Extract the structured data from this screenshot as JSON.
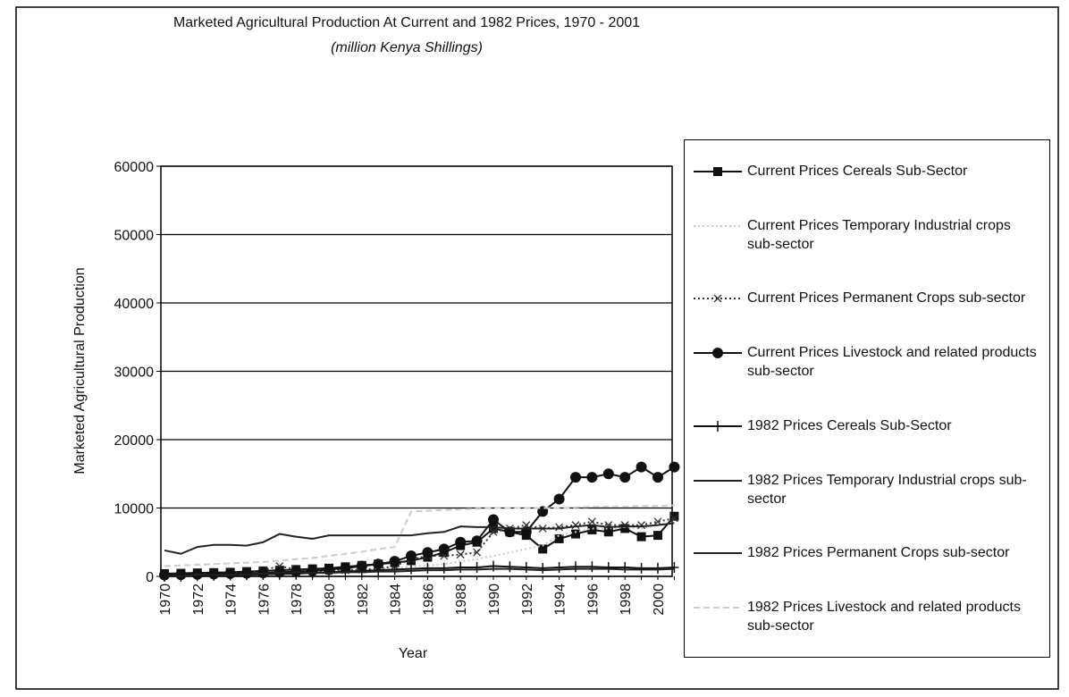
{
  "chart_data": {
    "type": "line",
    "title": "Marketed Agricultural Production At Current and 1982 Prices, 1970 - 2001",
    "subtitle": "(million Kenya Shillings)",
    "y_label": "Marketed Agricultural Production",
    "x_label": "Year",
    "categories": [
      "1970",
      null,
      "1972",
      null,
      "1974",
      null,
      "1976",
      null,
      "1978",
      null,
      "1980",
      null,
      "1982",
      null,
      "1984",
      null,
      "1986",
      null,
      "1988",
      null,
      "1990",
      null,
      "1992",
      null,
      "1994",
      null,
      "1996",
      null,
      "1998",
      null,
      "2000",
      null
    ],
    "ylim": [
      0,
      60000
    ],
    "yticks": [
      0,
      10000,
      20000,
      30000,
      40000,
      50000,
      60000
    ],
    "grid": true,
    "series": [
      {
        "name": "Current Prices Cereals Sub-Sector",
        "color": "#111111",
        "marker": "square",
        "dash": "solid",
        "values": [
          400,
          450,
          500,
          550,
          600,
          700,
          800,
          900,
          1000,
          1100,
          1200,
          1400,
          1600,
          1800,
          2000,
          2300,
          2800,
          3500,
          4500,
          5000,
          7000,
          6500,
          6000,
          4000,
          5500,
          6200,
          6800,
          6500,
          7000,
          5800,
          6000,
          8800
        ]
      },
      {
        "name": "Current Prices Temporary Industrial crops sub-sector",
        "color": "#c8c8c8",
        "marker": "none",
        "dash": "dotted",
        "values": [
          200,
          200,
          250,
          300,
          350,
          400,
          450,
          500,
          550,
          600,
          700,
          800,
          900,
          1000,
          1200,
          1400,
          1600,
          1800,
          2200,
          2500,
          3000,
          3500,
          4000,
          4500,
          6000,
          6500,
          7000,
          7000,
          7200,
          7000,
          7500,
          7800
        ]
      },
      {
        "name": "Current Prices Permanent Crops sub-sector",
        "color": "#333333",
        "marker": "x",
        "dash": "dotted",
        "values": [
          300,
          300,
          350,
          400,
          500,
          600,
          900,
          1500,
          1000,
          800,
          800,
          900,
          1000,
          1100,
          1500,
          2500,
          3000,
          3000,
          3200,
          3500,
          6500,
          7000,
          7500,
          7000,
          7200,
          7500,
          8000,
          7500,
          7500,
          7500,
          8000,
          8500
        ]
      },
      {
        "name": "Current Prices Livestock and related products sub-sector",
        "color": "#111111",
        "marker": "circle",
        "dash": "solid",
        "values": [
          200,
          250,
          300,
          350,
          400,
          450,
          500,
          600,
          700,
          800,
          1000,
          1200,
          1500,
          1800,
          2200,
          3000,
          3500,
          4000,
          5000,
          5200,
          8300,
          6500,
          6500,
          9500,
          11300,
          14500,
          14500,
          15000,
          14500,
          16000,
          14500,
          16000
        ]
      },
      {
        "name": "1982 Prices Cereals Sub-Sector",
        "color": "#111111",
        "marker": "plus",
        "dash": "solid",
        "values": [
          0,
          0,
          100,
          150,
          200,
          250,
          300,
          350,
          400,
          500,
          600,
          700,
          800,
          900,
          1000,
          1100,
          1200,
          1200,
          1300,
          1300,
          1500,
          1400,
          1300,
          1200,
          1300,
          1400,
          1400,
          1300,
          1300,
          1200,
          1200,
          1300
        ]
      },
      {
        "name": "1982 Prices Temporary Industrial crops sub-sector",
        "color": "#222222",
        "marker": "none",
        "dash": "solid",
        "values": [
          100,
          0,
          300,
          200,
          200,
          300,
          400,
          500,
          600,
          500,
          500,
          600,
          600,
          700,
          700,
          800,
          900,
          900,
          1000,
          1000,
          1100,
          1100,
          1000,
          900,
          1000,
          1100,
          1100,
          1100,
          1000,
          1000,
          1000,
          1100
        ]
      },
      {
        "name": "1982 Prices Permanent Crops sub-sector",
        "color": "#222222",
        "marker": "none",
        "dash": "solid",
        "values": [
          3800,
          3300,
          4300,
          4600,
          4600,
          4500,
          5000,
          6200,
          5800,
          5500,
          6000,
          6000,
          6000,
          6000,
          6000,
          6000,
          6300,
          6500,
          7300,
          7200,
          7200,
          7000,
          7000,
          7000,
          7000,
          7300,
          7500,
          7200,
          7300,
          7300,
          7500,
          7800
        ]
      },
      {
        "name": "1982 Prices Livestock and related products sub-sector",
        "color": "#cccccc",
        "marker": "none",
        "dash": "dashed",
        "values": [
          1500,
          1600,
          1700,
          1800,
          1900,
          2000,
          2100,
          2300,
          2500,
          2700,
          3000,
          3300,
          3600,
          4000,
          4300,
          9500,
          9600,
          9700,
          9800,
          9900,
          10000,
          10000,
          10000,
          10000,
          10000,
          10100,
          10200,
          10200,
          10200,
          10300,
          10300,
          10400
        ]
      }
    ]
  }
}
